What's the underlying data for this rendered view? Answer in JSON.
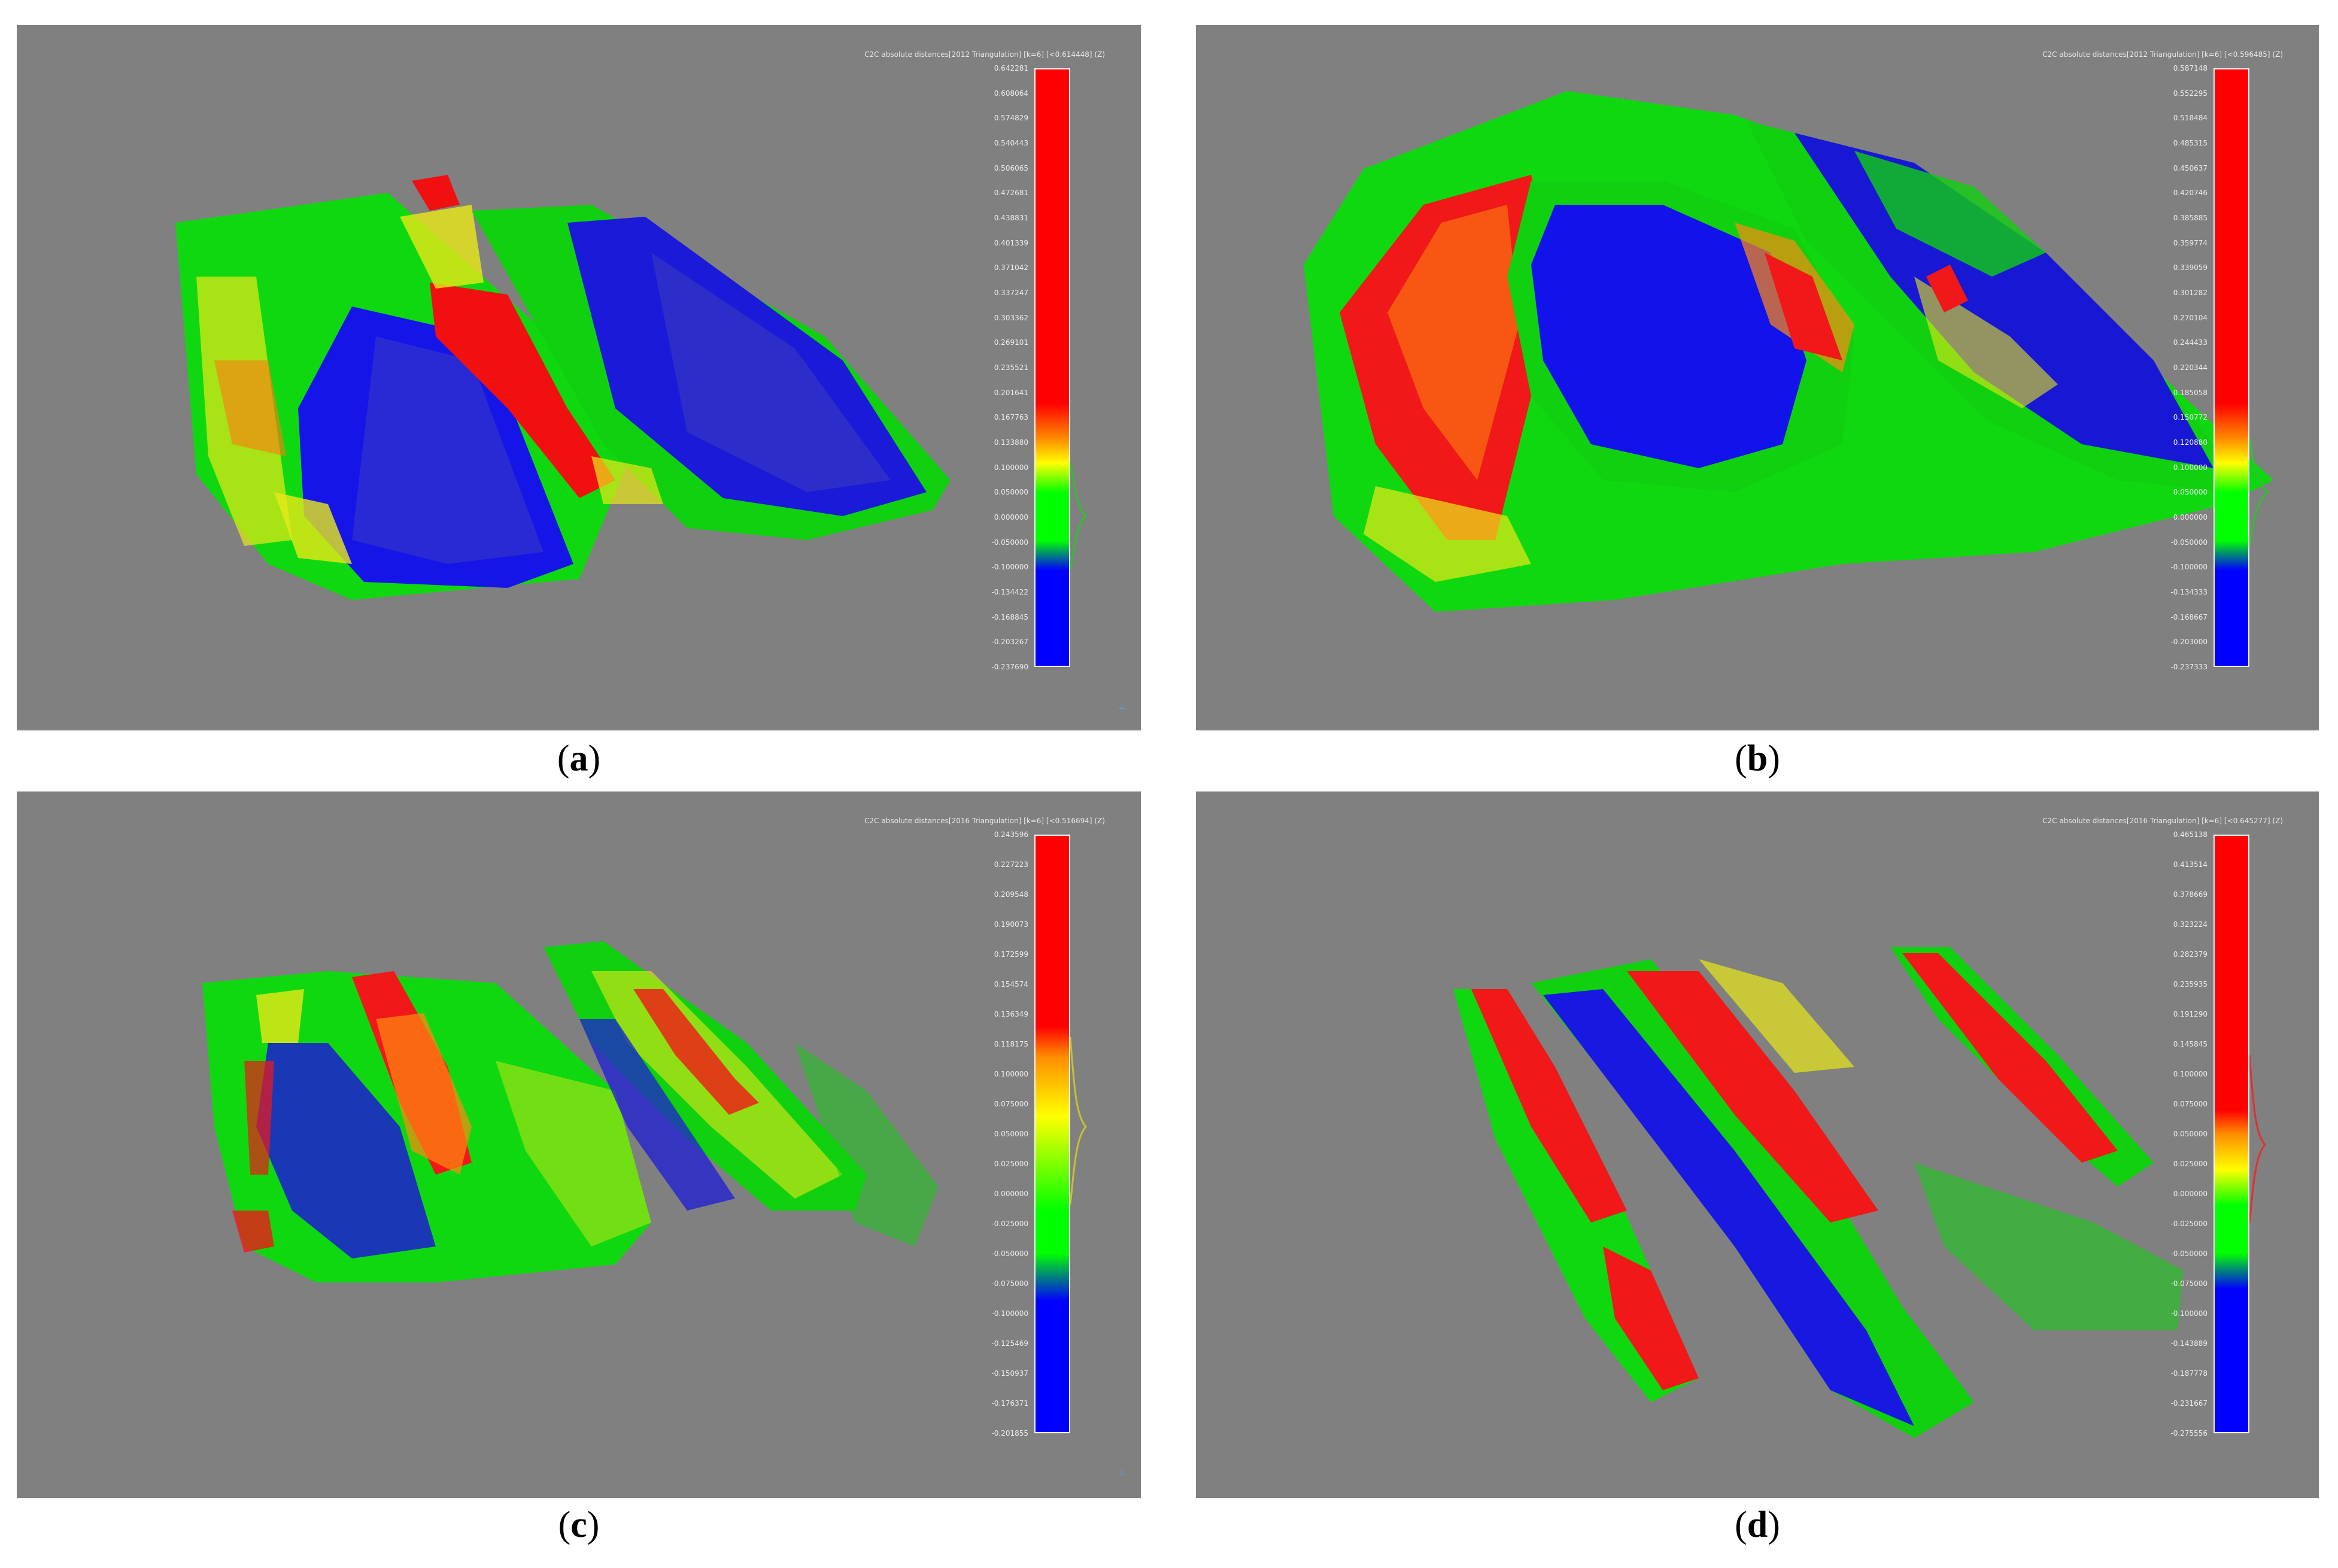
{
  "panels": [
    {
      "id": "a",
      "caption": "a",
      "scalar_field_title": "C2C absolute distances[2012 Triangulation] [k=6] [<0.614448] (Z)",
      "scale_labels": [
        "0.642281",
        "0.608064",
        "0.574829",
        "0.540443",
        "0.506065",
        "0.472681",
        "0.438831",
        "0.401339",
        "0.371042",
        "0.337247",
        "0.303362",
        "0.269101",
        "0.235521",
        "0.201641",
        "0.167763",
        "0.133880",
        "0.100000",
        "0.050000",
        "0.000000",
        "-0.050000",
        "-0.100000",
        "-0.134422",
        "-0.168845",
        "-0.203267",
        "-0.237690"
      ]
    },
    {
      "id": "b",
      "caption": "b",
      "scalar_field_title": "C2C absolute distances[2012 Triangulation] [k=6] [<0.596485] (Z)",
      "scale_labels": [
        "0.587148",
        "0.552295",
        "0.518484",
        "0.485315",
        "0.450637",
        "0.420746",
        "0.385885",
        "0.359774",
        "0.339059",
        "0.301282",
        "0.270104",
        "0.244433",
        "0.220344",
        "0.185058",
        "0.150772",
        "0.120880",
        "0.100000",
        "0.050000",
        "0.000000",
        "-0.050000",
        "-0.100000",
        "-0.134333",
        "-0.168667",
        "-0.203000",
        "-0.237333"
      ]
    },
    {
      "id": "c",
      "caption": "c",
      "scalar_field_title": "C2C absolute distances[2016 Triangulation] [k=6] [<0.516694] (Z)",
      "scale_labels": [
        "0.243596",
        "0.227223",
        "0.209548",
        "0.190073",
        "0.172599",
        "0.154574",
        "0.136349",
        "0.118175",
        "0.100000",
        "0.075000",
        "0.050000",
        "0.025000",
        "0.000000",
        "-0.025000",
        "-0.050000",
        "-0.075000",
        "-0.100000",
        "-0.125469",
        "-0.150937",
        "-0.176371",
        "-0.201855"
      ]
    },
    {
      "id": "d",
      "caption": "d",
      "scalar_field_title": "C2C absolute distances[2016 Triangulation] [k=6] [<0.645277] (Z)",
      "scale_labels": [
        "0.465138",
        "0.413514",
        "0.378669",
        "0.323224",
        "0.282379",
        "0.235935",
        "0.191290",
        "0.145845",
        "0.100000",
        "0.075000",
        "0.050000",
        "0.025000",
        "0.000000",
        "-0.025000",
        "-0.050000",
        "-0.075000",
        "-0.100000",
        "-0.143889",
        "-0.187778",
        "-0.231667",
        "-0.275556"
      ]
    }
  ],
  "colors": {
    "background": "#808080",
    "red": "#ff0000",
    "yellow": "#ffff00",
    "green": "#00ff00",
    "blue": "#0000ff"
  },
  "axis_marker_icon": "axis-triad-icon"
}
